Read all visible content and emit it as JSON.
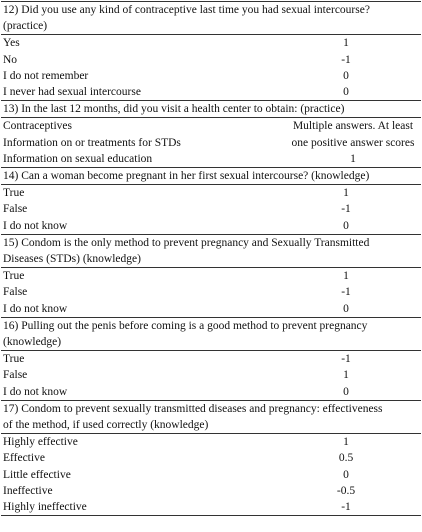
{
  "sections": [
    {
      "question": "12) Did you use any kind of contraceptive last time you had sexual intercourse? (practice)",
      "options": [
        {
          "label": "Yes",
          "score": 1
        },
        {
          "label": "No",
          "score": -1
        },
        {
          "label": "I do not remember",
          "score": 0
        },
        {
          "label": "I never had sexual intercourse",
          "score": 0
        }
      ]
    },
    {
      "question": "13) In the last 12 months, did you visit a health center to obtain: (practice)",
      "options": [
        {
          "label": "Contraceptives"
        },
        {
          "label": "Information on or treatments for STDs"
        },
        {
          "label": "Information on sexual education"
        }
      ],
      "note": "Multiple answers. At least one positive answer scores 1"
    },
    {
      "question": "14) Can a woman become pregnant in her first sexual intercourse? (knowledge)",
      "options": [
        {
          "label": "True",
          "score": 1
        },
        {
          "label": "False",
          "score": -1
        },
        {
          "label": "I do not know",
          "score": 0
        }
      ]
    },
    {
      "question": "15) Condom is the only method to prevent pregnancy and Sexually Transmitted Diseases (STDs) (knowledge)",
      "options": [
        {
          "label": "True",
          "score": 1
        },
        {
          "label": "False",
          "score": -1
        },
        {
          "label": "I do not know",
          "score": 0
        }
      ]
    },
    {
      "question": "16) Pulling out the penis before coming is a good method to prevent pregnancy (knowledge)",
      "options": [
        {
          "label": "True",
          "score": -1
        },
        {
          "label": "False",
          "score": 1
        },
        {
          "label": "I do not know",
          "score": 0
        }
      ]
    },
    {
      "question": "17) Condom to prevent sexually transmitted diseases and pregnancy: effectiveness of the method, if used correctly (knowledge)",
      "options": [
        {
          "label": "Highly effective",
          "score": 1
        },
        {
          "label": "Effective",
          "score": 0.5
        },
        {
          "label": "Little effective",
          "score": 0
        },
        {
          "label": "Ineffective",
          "score": -0.5
        },
        {
          "label": "Highly ineffective",
          "score": -1
        }
      ]
    }
  ]
}
